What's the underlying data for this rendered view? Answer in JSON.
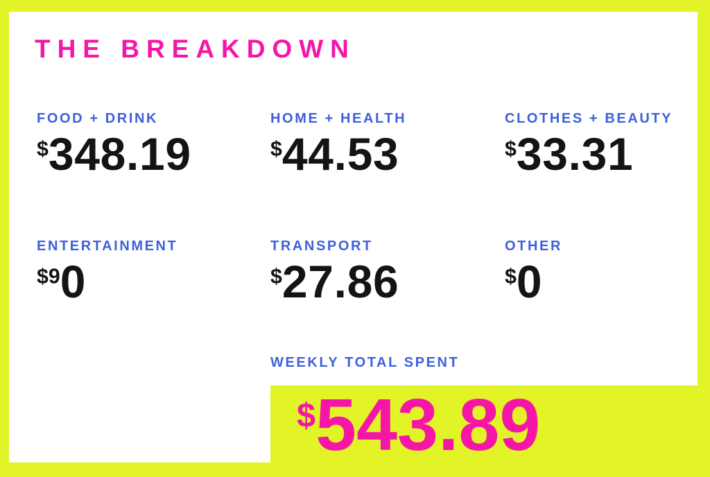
{
  "title": "THE BREAKDOWN",
  "colors": {
    "background_yellow": "#E2F327",
    "card_white": "#FFFFFF",
    "accent_pink": "#F516A8",
    "label_blue": "#3D61DB",
    "amount_black": "#141414"
  },
  "categories": [
    {
      "label": "FOOD + DRINK",
      "prefix": "$",
      "amount": "348.19"
    },
    {
      "label": "HOME + HEALTH",
      "prefix": "$",
      "amount": "44.53"
    },
    {
      "label": "CLOTHES + BEAUTY",
      "prefix": "$",
      "amount": "33.31"
    },
    {
      "label": "ENTERTAINMENT",
      "prefix": "$9",
      "amount": "0"
    },
    {
      "label": "TRANSPORT",
      "prefix": "$",
      "amount": "27.86"
    },
    {
      "label": "OTHER",
      "prefix": "$",
      "amount": "0"
    }
  ],
  "total": {
    "label": "WEEKLY TOTAL SPENT",
    "prefix": "$",
    "amount": "543.89"
  },
  "chart_data": {
    "type": "table",
    "title": "THE BREAKDOWN",
    "categories": [
      "FOOD + DRINK",
      "HOME + HEALTH",
      "CLOTHES + BEAUTY",
      "ENTERTAINMENT",
      "TRANSPORT",
      "OTHER"
    ],
    "values": [
      348.19,
      44.53,
      33.31,
      90,
      27.86,
      0
    ],
    "display_values": [
      "$348.19",
      "$44.53",
      "$33.31",
      "$90",
      "$27.86",
      "$0"
    ],
    "total_label": "WEEKLY TOTAL SPENT",
    "total_value": 543.89,
    "total_display": "$543.89"
  }
}
